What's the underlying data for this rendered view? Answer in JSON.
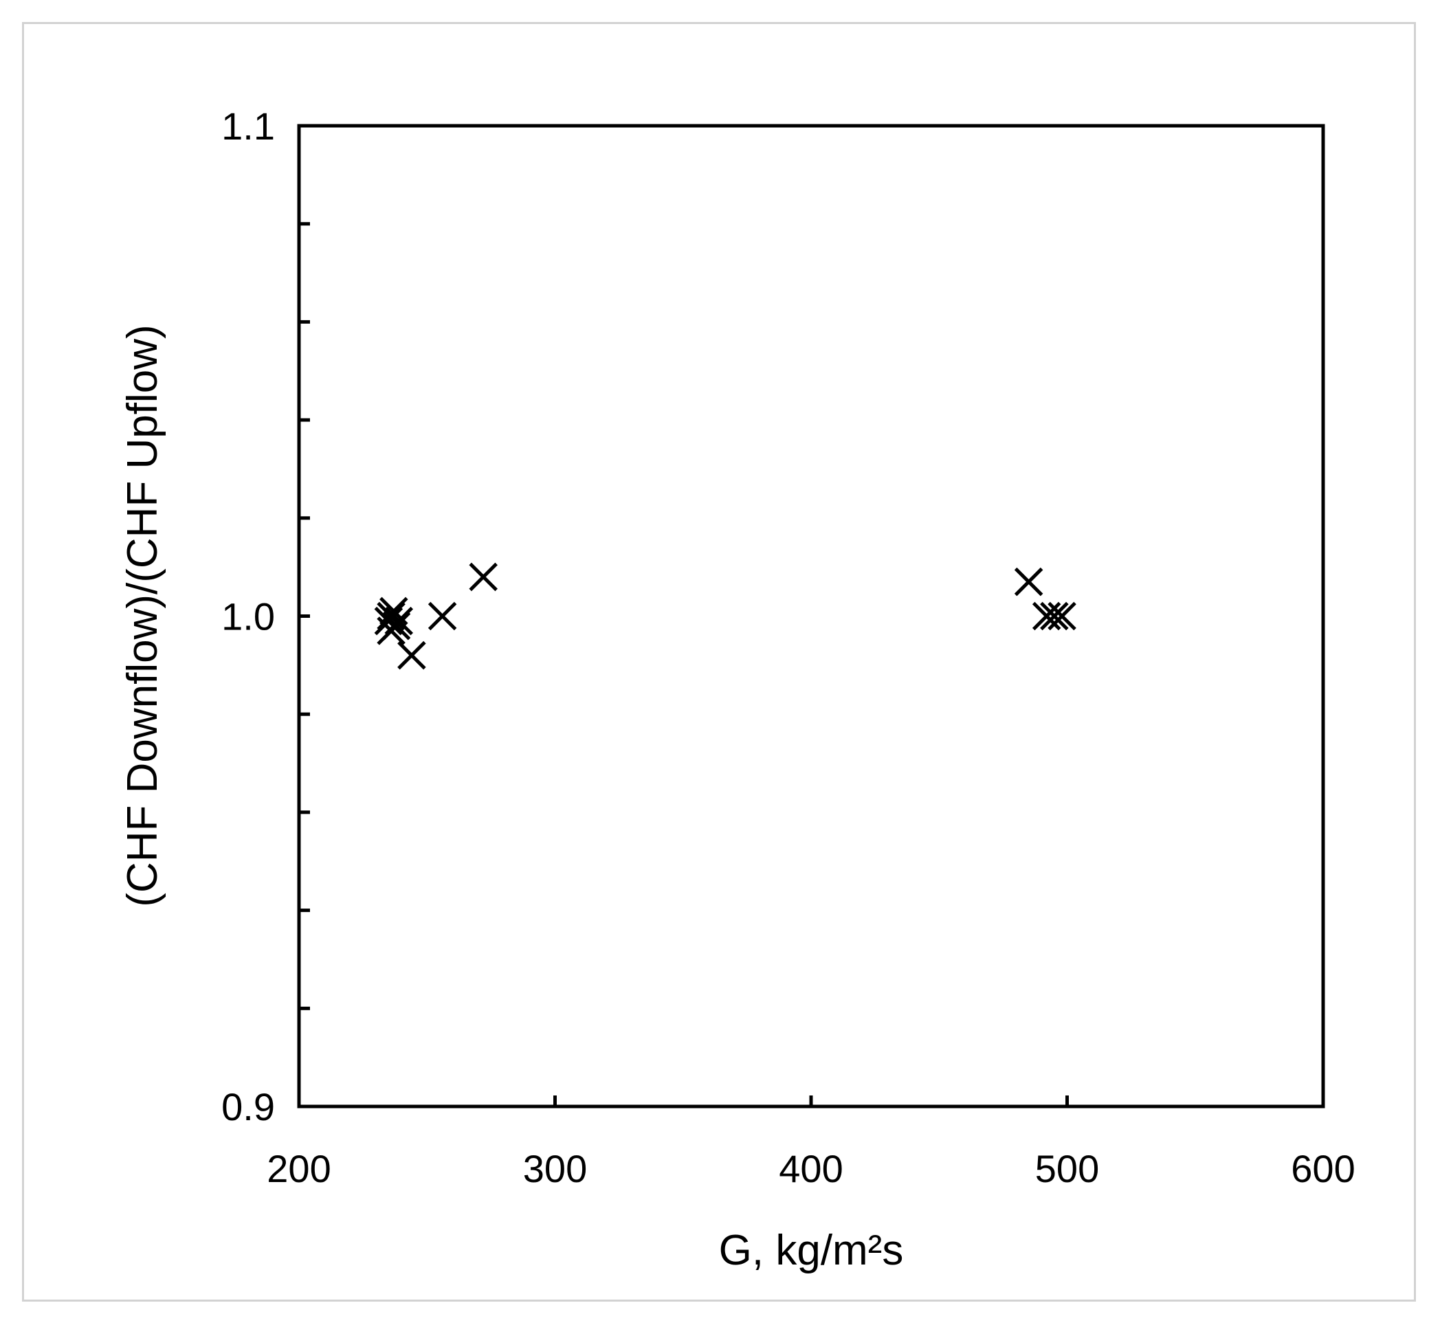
{
  "chart_data": {
    "type": "scatter",
    "title": "",
    "xlabel": "G, kg/m²s",
    "ylabel": "(CHF Downflow)/(CHF Upflow)",
    "xlim": [
      200,
      600
    ],
    "ylim": [
      0.9,
      1.1
    ],
    "x_ticks": [
      200,
      300,
      400,
      500,
      600
    ],
    "x_tick_labels": [
      "200",
      "300",
      "400",
      "500",
      "600"
    ],
    "y_ticks": [
      0.9,
      1.0,
      1.1
    ],
    "y_tick_labels": [
      "0.9",
      "1.0",
      "1.1"
    ],
    "y_minor_step": 0.02,
    "grid": false,
    "legend": "none",
    "marker": "x",
    "marker_color": "#000000",
    "series": [
      {
        "x": [
          235,
          236,
          237,
          238,
          236,
          239,
          244,
          256,
          272,
          485,
          492,
          495,
          498
        ],
        "y": [
          0.999,
          1.0,
          1.001,
          0.998,
          0.997,
          0.999,
          0.992,
          1.0,
          1.008,
          1.007,
          1.0,
          1.0,
          1.0
        ]
      }
    ]
  }
}
